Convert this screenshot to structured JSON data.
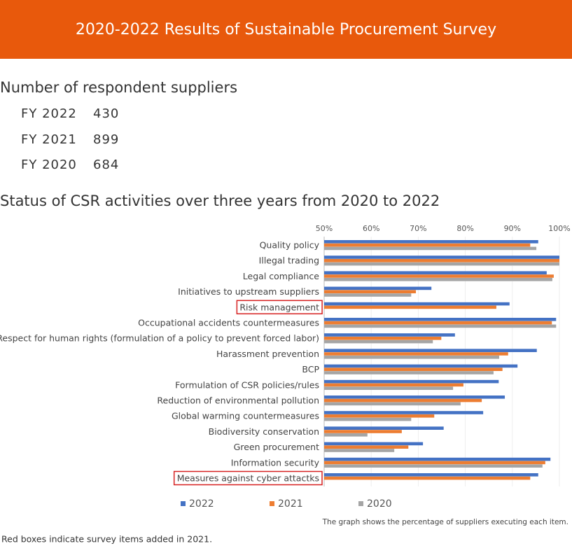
{
  "header": {
    "title": "2020-2022 Results of Sustainable Procurement Survey"
  },
  "respondents": {
    "heading": "Number of respondent suppliers",
    "items": [
      {
        "label": "FY 2022",
        "value": 430
      },
      {
        "label": "FY 2021",
        "value": 899
      },
      {
        "label": "FY 2020",
        "value": 684
      }
    ]
  },
  "chart_data": {
    "type": "bar",
    "orientation": "horizontal",
    "title": "Status of CSR activities over three years from 2020 to 2022",
    "categories": [
      "Quality policy",
      "Illegal trading",
      "Legal compliance",
      "Initiatives to upstream suppliers",
      "Risk management",
      "Occupational accidents countermeasures",
      "Respect for human rights (formulation of a policy to prevent forced labor)",
      "Harassment prevention",
      "BCP",
      "Formulation of CSR policies/rules",
      "Reduction of environmental pollution",
      "Global warming countermeasures",
      "Biodiversity conservation",
      "Green procurement",
      "Information security",
      "Measures against cyber attactks"
    ],
    "highlighted": [
      false,
      false,
      false,
      false,
      true,
      false,
      false,
      false,
      false,
      false,
      false,
      false,
      false,
      false,
      false,
      true
    ],
    "series": [
      {
        "name": "2022",
        "color": "#4472c4",
        "values": [
          95.5,
          100,
          97.3,
          72.8,
          89.4,
          99.3,
          77.8,
          95.2,
          91.1,
          87.1,
          88.4,
          83.8,
          75.4,
          71.0,
          98.1,
          95.5
        ]
      },
      {
        "name": "2021",
        "color": "#ed7d31",
        "values": [
          93.8,
          100,
          98.8,
          69.5,
          86.6,
          98.4,
          74.9,
          89.1,
          87.9,
          79.6,
          83.5,
          73.4,
          66.5,
          67.9,
          97.0,
          93.8
        ]
      },
      {
        "name": "2020",
        "color": "#a5a5a5",
        "values": [
          95.1,
          100,
          98.5,
          68.5,
          null,
          99.3,
          73.1,
          87.2,
          86.0,
          77.4,
          79.0,
          68.5,
          59.2,
          64.9,
          96.4,
          null
        ]
      }
    ],
    "xlim": [
      50,
      100
    ],
    "xticks": [
      {
        "value": 50,
        "label": "50%"
      },
      {
        "value": 60,
        "label": "60%"
      },
      {
        "value": 70,
        "label": "70%"
      },
      {
        "value": 80,
        "label": "80%"
      },
      {
        "value": 90,
        "label": "90%"
      },
      {
        "value": 100,
        "label": "100%"
      }
    ],
    "grid": true,
    "note": "The graph shows the percentage of suppliers executing each item.",
    "highlight_note": "Red boxes indicate survey items added in 2021."
  }
}
